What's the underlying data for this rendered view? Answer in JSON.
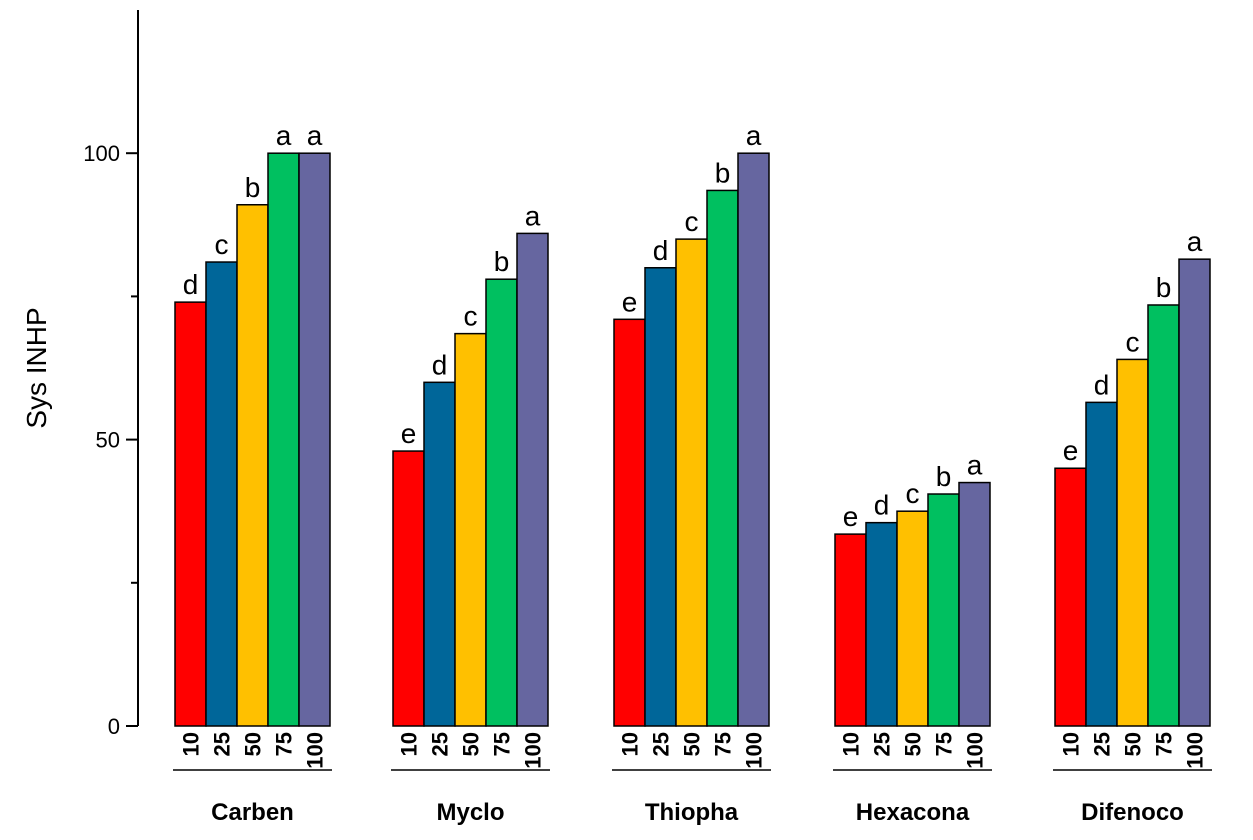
{
  "chart_data": {
    "type": "bar",
    "ylabel": "Sys INHP",
    "ylim": [
      0,
      125
    ],
    "yticks": [
      0,
      50,
      100
    ],
    "grid": false,
    "legend": "none",
    "categories": [
      "Carben",
      "Myclo",
      "Thiopha",
      "Hexacona",
      "Difenoco"
    ],
    "series": [
      {
        "name": "10",
        "color": "#ff0000",
        "values": [
          74,
          48,
          71,
          33.5,
          45
        ],
        "labels": [
          "d",
          "e",
          "e",
          "e",
          "e"
        ]
      },
      {
        "name": "25",
        "color": "#006699",
        "values": [
          81,
          60,
          80,
          35.5,
          56.5
        ],
        "labels": [
          "c",
          "d",
          "d",
          "d",
          "d"
        ]
      },
      {
        "name": "50",
        "color": "#ffc000",
        "values": [
          91,
          68.5,
          85,
          37.5,
          64
        ],
        "labels": [
          "b",
          "c",
          "c",
          "c",
          "c"
        ]
      },
      {
        "name": "75",
        "color": "#00c060",
        "values": [
          100,
          78,
          93.5,
          40.5,
          73.5
        ],
        "labels": [
          "a",
          "b",
          "b",
          "b",
          "b"
        ]
      },
      {
        "name": "100",
        "color": "#6666a0",
        "values": [
          100,
          86,
          100,
          42.5,
          81.5
        ],
        "labels": [
          "a",
          "a",
          "a",
          "a",
          "a"
        ]
      }
    ]
  }
}
